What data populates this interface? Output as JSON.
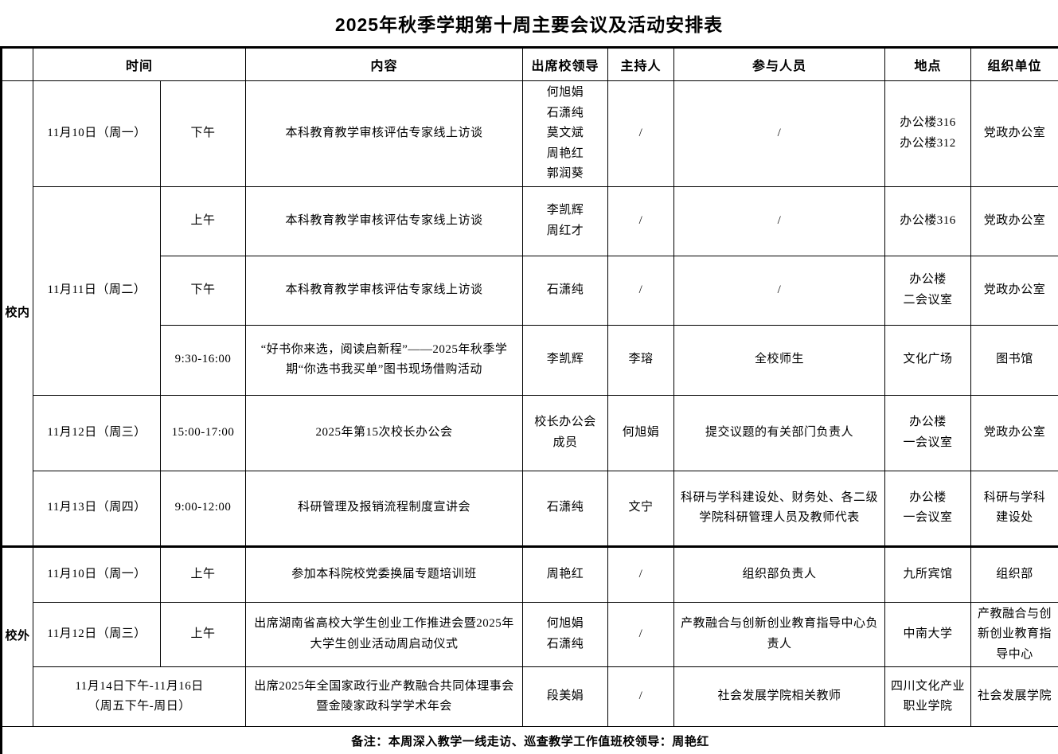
{
  "title": "2025年秋季学期第十周主要会议及活动安排表",
  "columns": {
    "time": "时间",
    "content": "内容",
    "leaders": "出席校领导",
    "host": "主持人",
    "participants": "参与人员",
    "location": "地点",
    "organizer": "组织单位"
  },
  "sections": [
    {
      "label": "校内",
      "dates": [
        {
          "date": "11月10日（周一）",
          "rows": [
            {
              "time": "下午",
              "content": "本科教育教学审核评估专家线上访谈",
              "leaders": "何旭娟\n石潇纯\n莫文斌\n周艳红\n郭润葵",
              "host": "/",
              "participants": "/",
              "location": "办公楼316\n办公楼312",
              "organizer": "党政办公室"
            }
          ]
        },
        {
          "date": "11月11日（周二）",
          "rows": [
            {
              "time": "上午",
              "content": "本科教育教学审核评估专家线上访谈",
              "leaders": "李凯辉\n周红才",
              "host": "/",
              "participants": "/",
              "location": "办公楼316",
              "organizer": "党政办公室"
            },
            {
              "time": "下午",
              "content": "本科教育教学审核评估专家线上访谈",
              "leaders": "石潇纯",
              "host": "/",
              "participants": "/",
              "location": "办公楼\n二会议室",
              "organizer": "党政办公室"
            },
            {
              "time": "9:30-16:00",
              "content": "“好书你来选，阅读启新程”——2025年秋季学期“你选书我买单”图书现场借购活动",
              "leaders": "李凯辉",
              "host": "李瑢",
              "participants": "全校师生",
              "location": "文化广场",
              "organizer": "图书馆"
            }
          ]
        },
        {
          "date": "11月12日（周三）",
          "rows": [
            {
              "time": "15:00-17:00",
              "content": "2025年第15次校长办公会",
              "leaders": "校长办公会\n成员",
              "host": "何旭娟",
              "participants": "提交议题的有关部门负责人",
              "location": "办公楼\n一会议室",
              "organizer": "党政办公室"
            }
          ]
        },
        {
          "date": "11月13日（周四）",
          "rows": [
            {
              "time": "9:00-12:00",
              "content": "科研管理及报销流程制度宣讲会",
              "leaders": "石潇纯",
              "host": "文宁",
              "participants": "科研与学科建设处、财务处、各二级学院科研管理人员及教师代表",
              "location": "办公楼\n一会议室",
              "organizer": "科研与学科\n建设处"
            }
          ]
        }
      ]
    },
    {
      "label": "校外",
      "dates": [
        {
          "date": "11月10日（周一）",
          "rows": [
            {
              "time": "上午",
              "content": "参加本科院校党委换届专题培训班",
              "leaders": "周艳红",
              "host": "/",
              "participants": "组织部负责人",
              "location": "九所宾馆",
              "organizer": "组织部"
            }
          ]
        },
        {
          "date": "11月12日（周三）",
          "rows": [
            {
              "time": "上午",
              "content": "出席湖南省高校大学生创业工作推进会暨2025年大学生创业活动周启动仪式",
              "leaders": "何旭娟\n石潇纯",
              "host": "/",
              "participants": "产教融合与创新创业教育指导中心负责人",
              "location": "中南大学",
              "organizer": "产教融合与创新创业教育指导中心"
            }
          ]
        },
        {
          "date": "11月14日下午-11月16日\n（周五下午-周日）",
          "colspan": 2,
          "rows": [
            {
              "time": null,
              "content": "出席2025年全国家政行业产教融合共同体理事会暨金陵家政科学学术年会",
              "leaders": "段美娟",
              "host": "/",
              "participants": "社会发展学院相关教师",
              "location": "四川文化产业\n职业学院",
              "organizer": "社会发展学院"
            }
          ]
        }
      ]
    }
  ],
  "note": "备注：本周深入教学一线走访、巡查教学工作值班校领导：周艳红"
}
